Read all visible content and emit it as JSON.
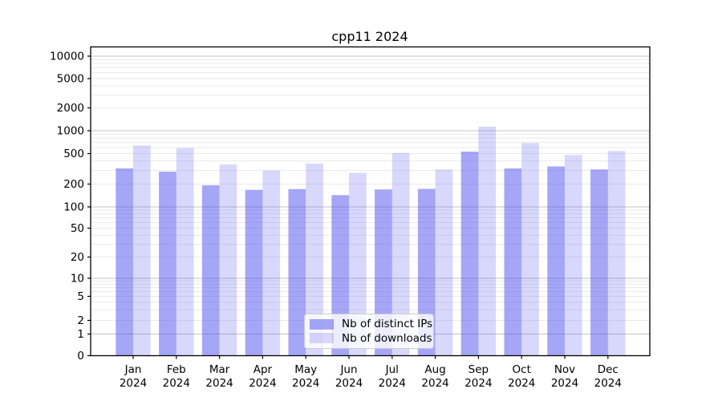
{
  "title": "cpp11 2024",
  "chart_data": {
    "type": "bar",
    "title": "cpp11 2024",
    "y_scale": "symlog",
    "ylim": [
      0,
      10000
    ],
    "grid": true,
    "legend_position": "bottom-center",
    "y_ticks": [
      0,
      1,
      2,
      5,
      10,
      20,
      50,
      100,
      200,
      500,
      1000,
      2000,
      5000,
      10000
    ],
    "categories": [
      "Jan",
      "Feb",
      "Mar",
      "Apr",
      "May",
      "Jun",
      "Jul",
      "Aug",
      "Sep",
      "Oct",
      "Nov",
      "Dec"
    ],
    "category_year": "2024",
    "series": [
      {
        "name": "Nb of distinct IPs",
        "color": "rgba(85,85,240,0.52)",
        "values": [
          320,
          290,
          193,
          168,
          172,
          143,
          170,
          173,
          530,
          320,
          340,
          310
        ]
      },
      {
        "name": "Nb of downloads",
        "color": "rgba(85,85,240,0.23)",
        "values": [
          640,
          590,
          360,
          300,
          370,
          280,
          510,
          310,
          1130,
          690,
          480,
          540
        ]
      }
    ]
  }
}
